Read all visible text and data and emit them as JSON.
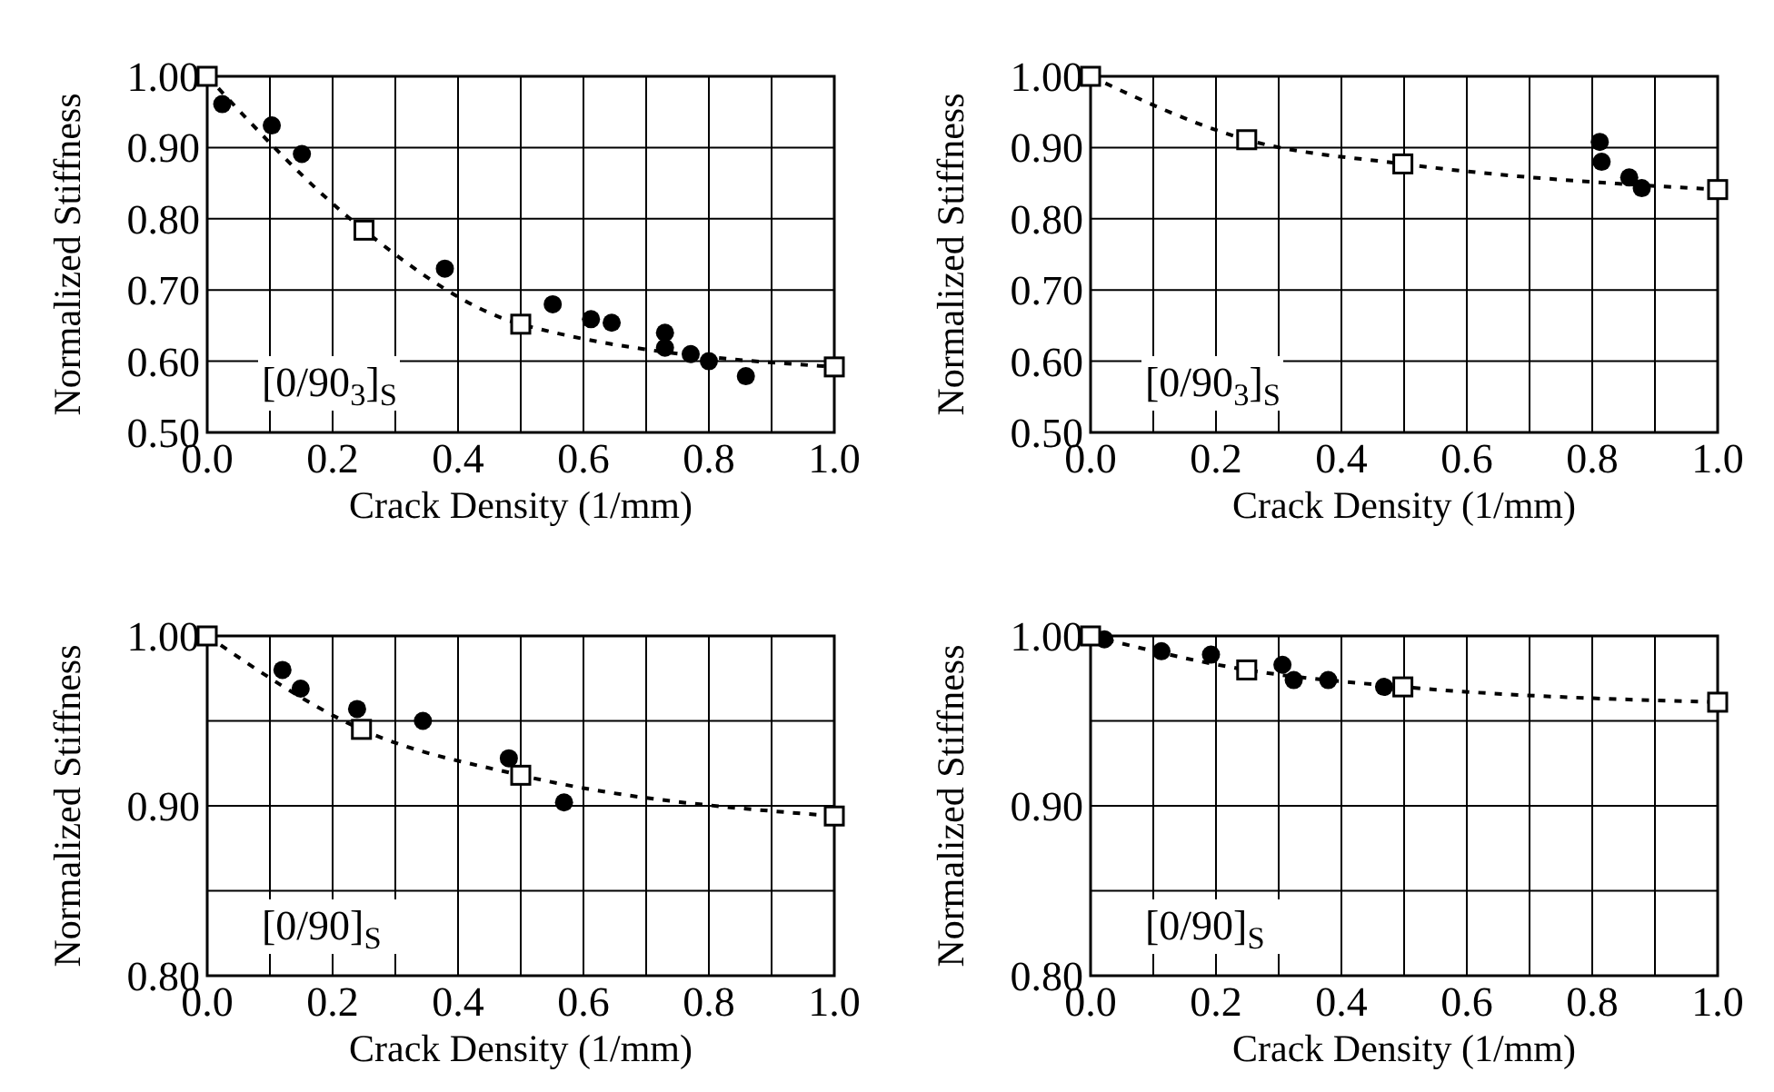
{
  "chart_data": [
    {
      "type": "scatter",
      "xlabel": "Crack Density (1/mm)",
      "ylabel": "Normalized Stiffness",
      "annotations": [
        "[0/90$_{3}$]$_{S}$"
      ],
      "grid": true,
      "xlim": [
        0,
        1
      ],
      "ylim": [
        0.5,
        1
      ],
      "xticks": [
        {
          "value": 0,
          "label": "0.0"
        },
        {
          "value": 0.1,
          "label": null
        },
        {
          "value": 0.2,
          "label": "0.2"
        },
        {
          "value": 0.3,
          "label": null
        },
        {
          "value": 0.4,
          "label": "0.4"
        },
        {
          "value": 0.5,
          "label": null
        },
        {
          "value": 0.6,
          "label": "0.6"
        },
        {
          "value": 0.7,
          "label": null
        },
        {
          "value": 0.8,
          "label": "0.8"
        },
        {
          "value": 0.9,
          "label": null
        },
        {
          "value": 1,
          "label": "1.0"
        }
      ],
      "yticks": [
        {
          "value": 0.5,
          "label": "0.50"
        },
        {
          "value": 0.6,
          "label": "0.60"
        },
        {
          "value": 0.7,
          "label": "0.70"
        },
        {
          "value": 0.8,
          "label": "0.80"
        },
        {
          "value": 0.9,
          "label": "0.90"
        },
        {
          "value": 1,
          "label": "1.00"
        }
      ],
      "series": [
        {
          "type": "scatter",
          "color": "#000000",
          "marker": "circle",
          "x": [
            0.024,
            0.103,
            0.151,
            0.379,
            0.551,
            0.612,
            0.645,
            0.73,
            0.73,
            0.771,
            0.8,
            0.859
          ],
          "values": [
            0.961,
            0.931,
            0.891,
            0.73,
            0.68,
            0.659,
            0.654,
            0.64,
            0.619,
            0.61,
            0.6,
            0.579
          ]
        },
        {
          "type": "line",
          "color": "#000000",
          "marker": "square",
          "line_style": "dotted",
          "x": [
            0,
            0.25,
            0.5,
            1
          ],
          "values": [
            1,
            0.784,
            0.652,
            0.592
          ]
        }
      ]
    },
    {
      "type": "scatter",
      "xlabel": "Crack Density (1/mm)",
      "ylabel": "Normalized Stiffness",
      "annotations": [
        "[0/90$_{3}$]$_{S}$"
      ],
      "grid": true,
      "xlim": [
        0,
        1
      ],
      "ylim": [
        0.5,
        1
      ],
      "xticks": [
        {
          "value": 0,
          "label": "0.0"
        },
        {
          "value": 0.1,
          "label": null
        },
        {
          "value": 0.2,
          "label": "0.2"
        },
        {
          "value": 0.3,
          "label": null
        },
        {
          "value": 0.4,
          "label": "0.4"
        },
        {
          "value": 0.5,
          "label": null
        },
        {
          "value": 0.6,
          "label": "0.6"
        },
        {
          "value": 0.7,
          "label": null
        },
        {
          "value": 0.8,
          "label": "0.8"
        },
        {
          "value": 0.9,
          "label": null
        },
        {
          "value": 1,
          "label": "1.0"
        }
      ],
      "yticks": [
        {
          "value": 0.5,
          "label": "0.50"
        },
        {
          "value": 0.6,
          "label": "0.60"
        },
        {
          "value": 0.7,
          "label": "0.70"
        },
        {
          "value": 0.8,
          "label": "0.80"
        },
        {
          "value": 0.9,
          "label": "0.90"
        },
        {
          "value": 1,
          "label": "1.00"
        }
      ],
      "series": [
        {
          "type": "scatter",
          "color": "#000000",
          "marker": "circle",
          "x": [
            0.812,
            0.815,
            0.859,
            0.879
          ],
          "values": [
            0.908,
            0.88,
            0.858,
            0.843
          ]
        },
        {
          "type": "line",
          "color": "#000000",
          "marker": "square",
          "line_style": "dotted",
          "x": [
            0,
            0.249,
            0.498,
            1
          ],
          "values": [
            1,
            0.911,
            0.877,
            0.841
          ]
        }
      ]
    },
    {
      "type": "scatter",
      "xlabel": "Crack Density (1/mm)",
      "ylabel": "Normalized Stiffness",
      "annotations": [
        "[0/90]$_{S}$"
      ],
      "grid": true,
      "xlim": [
        0,
        1
      ],
      "ylim": [
        0.8,
        1
      ],
      "xticks": [
        {
          "value": 0,
          "label": "0.0"
        },
        {
          "value": 0.1,
          "label": null
        },
        {
          "value": 0.2,
          "label": "0.2"
        },
        {
          "value": 0.3,
          "label": null
        },
        {
          "value": 0.4,
          "label": "0.4"
        },
        {
          "value": 0.5,
          "label": null
        },
        {
          "value": 0.6,
          "label": "0.6"
        },
        {
          "value": 0.7,
          "label": null
        },
        {
          "value": 0.8,
          "label": "0.8"
        },
        {
          "value": 0.9,
          "label": null
        },
        {
          "value": 1,
          "label": "1.0"
        }
      ],
      "yticks": [
        {
          "value": 0.8,
          "label": "0.80"
        },
        {
          "value": 0.85,
          "label": null
        },
        {
          "value": 0.9,
          "label": "0.90"
        },
        {
          "value": 0.95,
          "label": null
        },
        {
          "value": 1,
          "label": "1.00"
        }
      ],
      "series": [
        {
          "type": "scatter",
          "color": "#000000",
          "marker": "circle",
          "x": [
            0.12,
            0.149,
            0.239,
            0.344,
            0.481,
            0.569
          ],
          "values": [
            0.98,
            0.969,
            0.957,
            0.95,
            0.928,
            0.902
          ]
        },
        {
          "type": "line",
          "color": "#000000",
          "marker": "square",
          "line_style": "dotted",
          "x": [
            0,
            0.246,
            0.5,
            1
          ],
          "values": [
            1,
            0.945,
            0.918,
            0.894
          ]
        }
      ]
    },
    {
      "type": "scatter",
      "xlabel": "Crack Density (1/mm)",
      "ylabel": "Normalized Stiffness",
      "annotations": [
        "[0/90]$_{S}$"
      ],
      "grid": true,
      "xlim": [
        0,
        1
      ],
      "ylim": [
        0.8,
        1
      ],
      "xticks": [
        {
          "value": 0,
          "label": "0.0"
        },
        {
          "value": 0.1,
          "label": null
        },
        {
          "value": 0.2,
          "label": "0.2"
        },
        {
          "value": 0.3,
          "label": null
        },
        {
          "value": 0.4,
          "label": "0.4"
        },
        {
          "value": 0.5,
          "label": null
        },
        {
          "value": 0.6,
          "label": "0.6"
        },
        {
          "value": 0.7,
          "label": null
        },
        {
          "value": 0.8,
          "label": "0.8"
        },
        {
          "value": 0.9,
          "label": null
        },
        {
          "value": 1,
          "label": "1.0"
        }
      ],
      "yticks": [
        {
          "value": 0.8,
          "label": "0.80"
        },
        {
          "value": 0.85,
          "label": null
        },
        {
          "value": 0.9,
          "label": "0.90"
        },
        {
          "value": 0.95,
          "label": null
        },
        {
          "value": 1,
          "label": "1.00"
        }
      ],
      "series": [
        {
          "type": "scatter",
          "color": "#000000",
          "marker": "circle",
          "x": [
            0.022,
            0.113,
            0.192,
            0.306,
            0.324,
            0.379,
            0.468
          ],
          "values": [
            0.998,
            0.991,
            0.989,
            0.983,
            0.974,
            0.974,
            0.97
          ]
        },
        {
          "type": "line",
          "color": "#000000",
          "marker": "square",
          "line_style": "dotted",
          "x": [
            0,
            0.249,
            0.498,
            1
          ],
          "values": [
            1,
            0.98,
            0.97,
            0.961
          ]
        }
      ]
    }
  ]
}
